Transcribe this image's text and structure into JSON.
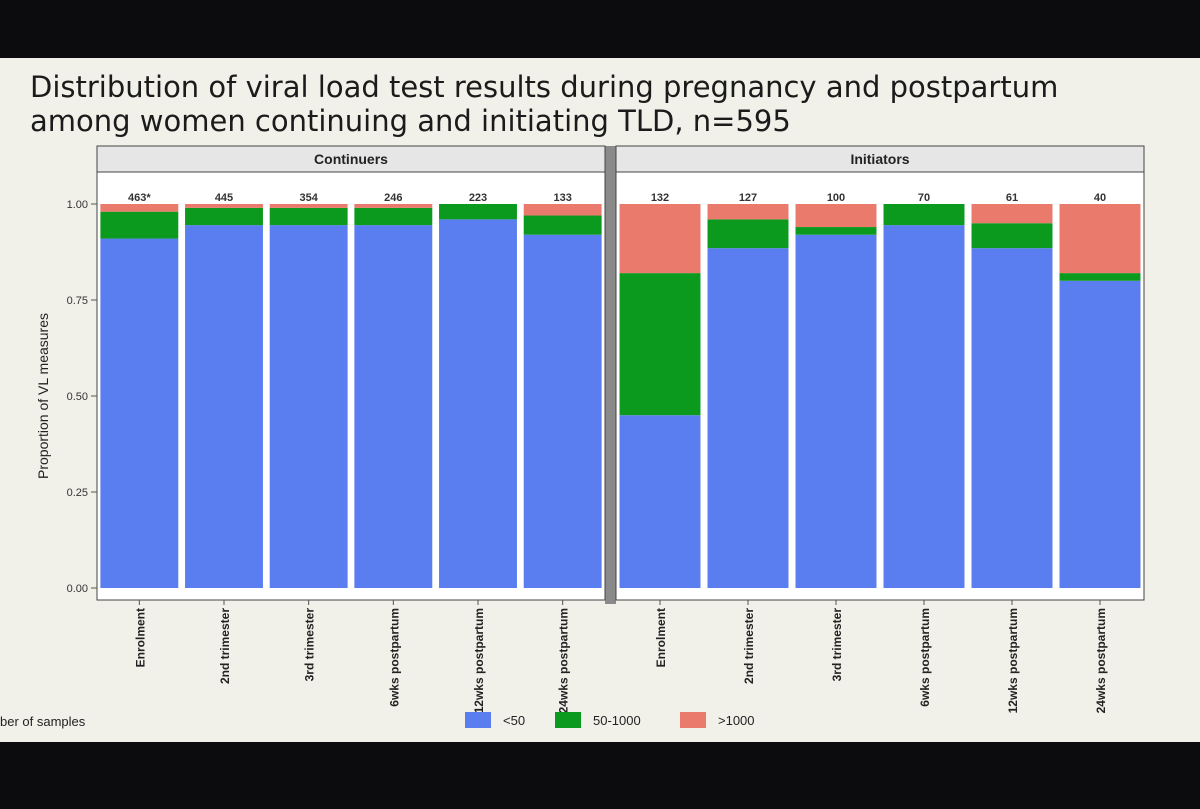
{
  "slide": {
    "title_line1": "Distribution of viral load test results during pregnancy and postpartum",
    "title_line2": "among  women continuing and initiating TLD,  n=595",
    "footnote": "ber of samples"
  },
  "chart_data": {
    "type": "bar",
    "stacked": true,
    "ylabel": "Proportion of VL measures",
    "ylim": [
      0,
      1.0
    ],
    "yticks": [
      "0.00",
      "0.25",
      "0.50",
      "0.75",
      "1.00"
    ],
    "legend": {
      "placement": "bottom",
      "entries": [
        "<50",
        "50-1000",
        ">1000"
      ]
    },
    "colors": {
      "<50": "#5a7df0",
      "50-1000": "#0b9a1e",
      ">1000": "#ea7a6c",
      "panel_bg": "#ffffff",
      "strip_bg": "#e6e6e6"
    },
    "panels": [
      {
        "name": "Continuers",
        "categories": [
          "Enrolment",
          "2nd trimester",
          "3rd trimester",
          "6wks postpartum",
          "12wks postpartum",
          "24wks postpartum"
        ],
        "counts": [
          "463*",
          "445",
          "354",
          "246",
          "223",
          "133"
        ],
        "series": [
          {
            "name": "<50",
            "values": [
              0.91,
              0.945,
              0.945,
              0.945,
              0.96,
              0.92
            ]
          },
          {
            "name": "50-1000",
            "values": [
              0.07,
              0.045,
              0.045,
              0.045,
              0.04,
              0.05
            ]
          },
          {
            "name": ">1000",
            "values": [
              0.02,
              0.01,
              0.01,
              0.01,
              0.0,
              0.03
            ]
          }
        ]
      },
      {
        "name": "Initiators",
        "categories": [
          "Enrolment",
          "2nd trimester",
          "3rd trimester",
          "6wks postpartum",
          "12wks postpartum",
          "24wks postpartum"
        ],
        "counts": [
          "132",
          "127",
          "100",
          "70",
          "61",
          "40"
        ],
        "series": [
          {
            "name": "<50",
            "values": [
              0.45,
              0.885,
              0.92,
              0.945,
              0.885,
              0.8
            ]
          },
          {
            "name": "50-1000",
            "values": [
              0.37,
              0.075,
              0.02,
              0.055,
              0.065,
              0.02
            ]
          },
          {
            "name": ">1000",
            "values": [
              0.18,
              0.04,
              0.06,
              0.0,
              0.05,
              0.18
            ]
          }
        ]
      }
    ]
  }
}
